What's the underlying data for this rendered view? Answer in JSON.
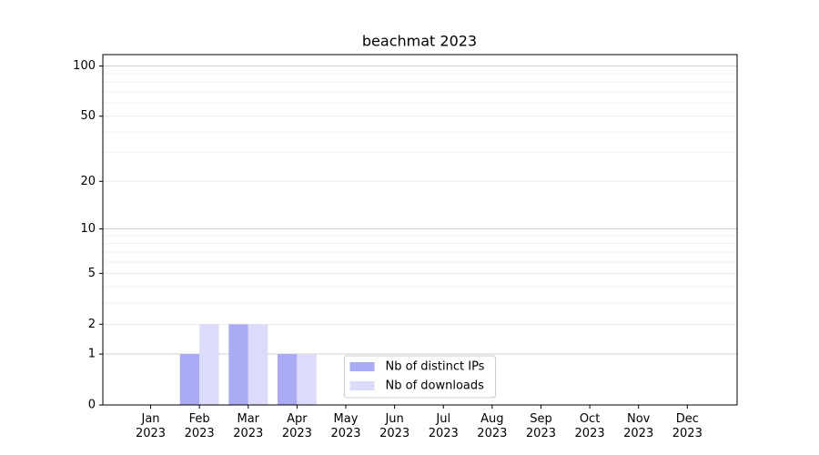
{
  "chart_data": {
    "type": "bar",
    "title": "beachmat 2023",
    "categories": [
      "Jan\n2023",
      "Feb\n2023",
      "Mar\n2023",
      "Apr\n2023",
      "May\n2023",
      "Jun\n2023",
      "Jul\n2023",
      "Aug\n2023",
      "Sep\n2023",
      "Oct\n2023",
      "Nov\n2023",
      "Dec\n2023"
    ],
    "series": [
      {
        "name": "Nb of distinct IPs",
        "color": "#aaaaf5",
        "values": [
          0,
          1,
          2,
          1,
          0,
          0,
          0,
          0,
          0,
          0,
          0,
          0
        ]
      },
      {
        "name": "Nb of downloads",
        "color": "#dcdcfa",
        "values": [
          0,
          2,
          2,
          1,
          0,
          0,
          0,
          0,
          0,
          0,
          0,
          0
        ]
      }
    ],
    "yscale": "log1p",
    "ylim": [
      0,
      117
    ],
    "yticks": [
      0,
      1,
      2,
      5,
      10,
      20,
      50,
      100
    ],
    "yminorticks": [
      3,
      4,
      6,
      7,
      8,
      9,
      30,
      40,
      60,
      70,
      80,
      90
    ],
    "grid": true,
    "legend": "lower center"
  }
}
